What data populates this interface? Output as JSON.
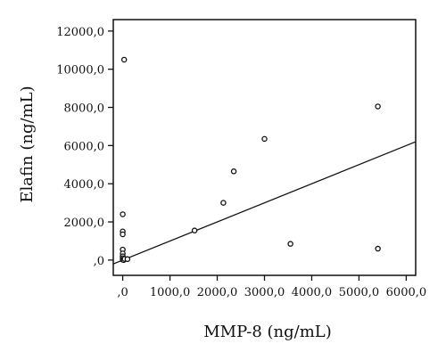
{
  "chart_data": {
    "type": "scatter",
    "title": "",
    "xlabel": "MMP-8 (ng/mL)",
    "ylabel": "Elafin (ng/mL)",
    "xlim": [
      -200,
      6200
    ],
    "ylim": [
      -800,
      12600
    ],
    "xticks": [
      0,
      1000,
      2000,
      3000,
      4000,
      5000,
      6000
    ],
    "xtick_labels": [
      ",0",
      "1000,0",
      "2000,0",
      "3000,0",
      "4000,0",
      "5000,0",
      "6000,0"
    ],
    "yticks": [
      0,
      2000,
      4000,
      6000,
      8000,
      10000,
      12000
    ],
    "ytick_labels": [
      ",0",
      "2000,0",
      "4000,0",
      "6000,0",
      "8000,0",
      "10000,0",
      "12000,0"
    ],
    "grid": false,
    "reference_line": "y = x",
    "marker": "open circle",
    "points": [
      {
        "x": 30,
        "y": 10500
      },
      {
        "x": 0,
        "y": 2400
      },
      {
        "x": 0,
        "y": 1500
      },
      {
        "x": 0,
        "y": 1350
      },
      {
        "x": 0,
        "y": 550
      },
      {
        "x": 0,
        "y": 350
      },
      {
        "x": 0,
        "y": 200
      },
      {
        "x": 0,
        "y": 100
      },
      {
        "x": 0,
        "y": 20
      },
      {
        "x": 20,
        "y": 0
      },
      {
        "x": 40,
        "y": 60
      },
      {
        "x": 100,
        "y": 50
      },
      {
        "x": 1520,
        "y": 1550
      },
      {
        "x": 2130,
        "y": 3000
      },
      {
        "x": 2350,
        "y": 4650
      },
      {
        "x": 3000,
        "y": 6350
      },
      {
        "x": 3550,
        "y": 850
      },
      {
        "x": 5400,
        "y": 8050
      },
      {
        "x": 5400,
        "y": 600
      }
    ]
  },
  "colors": {
    "ink": "#111111",
    "background": "#ffffff"
  }
}
